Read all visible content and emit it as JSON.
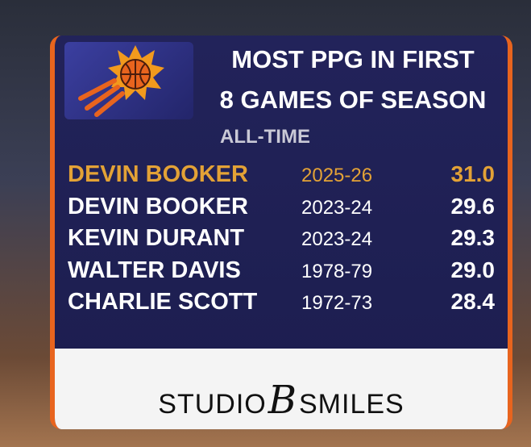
{
  "header": {
    "title_lines": [
      "MOST PPG IN FIRST",
      "8 GAMES OF SEASON"
    ],
    "subtitle": "ALL-TIME"
  },
  "table": {
    "rows": [
      [
        "DEVIN BOOKER",
        "2025-26",
        "31.0"
      ],
      [
        "DEVIN BOOKER",
        "2023-24",
        "29.6"
      ],
      [
        "KEVIN DURANT",
        "2023-24",
        "29.3"
      ],
      [
        "WALTER DAVIS",
        "1978-79",
        "29.0"
      ],
      [
        "CHARLIE SCOTT",
        "1972-73",
        "28.4"
      ]
    ],
    "highlight_row": 0,
    "highlight_color": "#e3a236"
  },
  "sponsor": {
    "left": "STUDIO",
    "mark": "B",
    "right": "SMILES"
  }
}
